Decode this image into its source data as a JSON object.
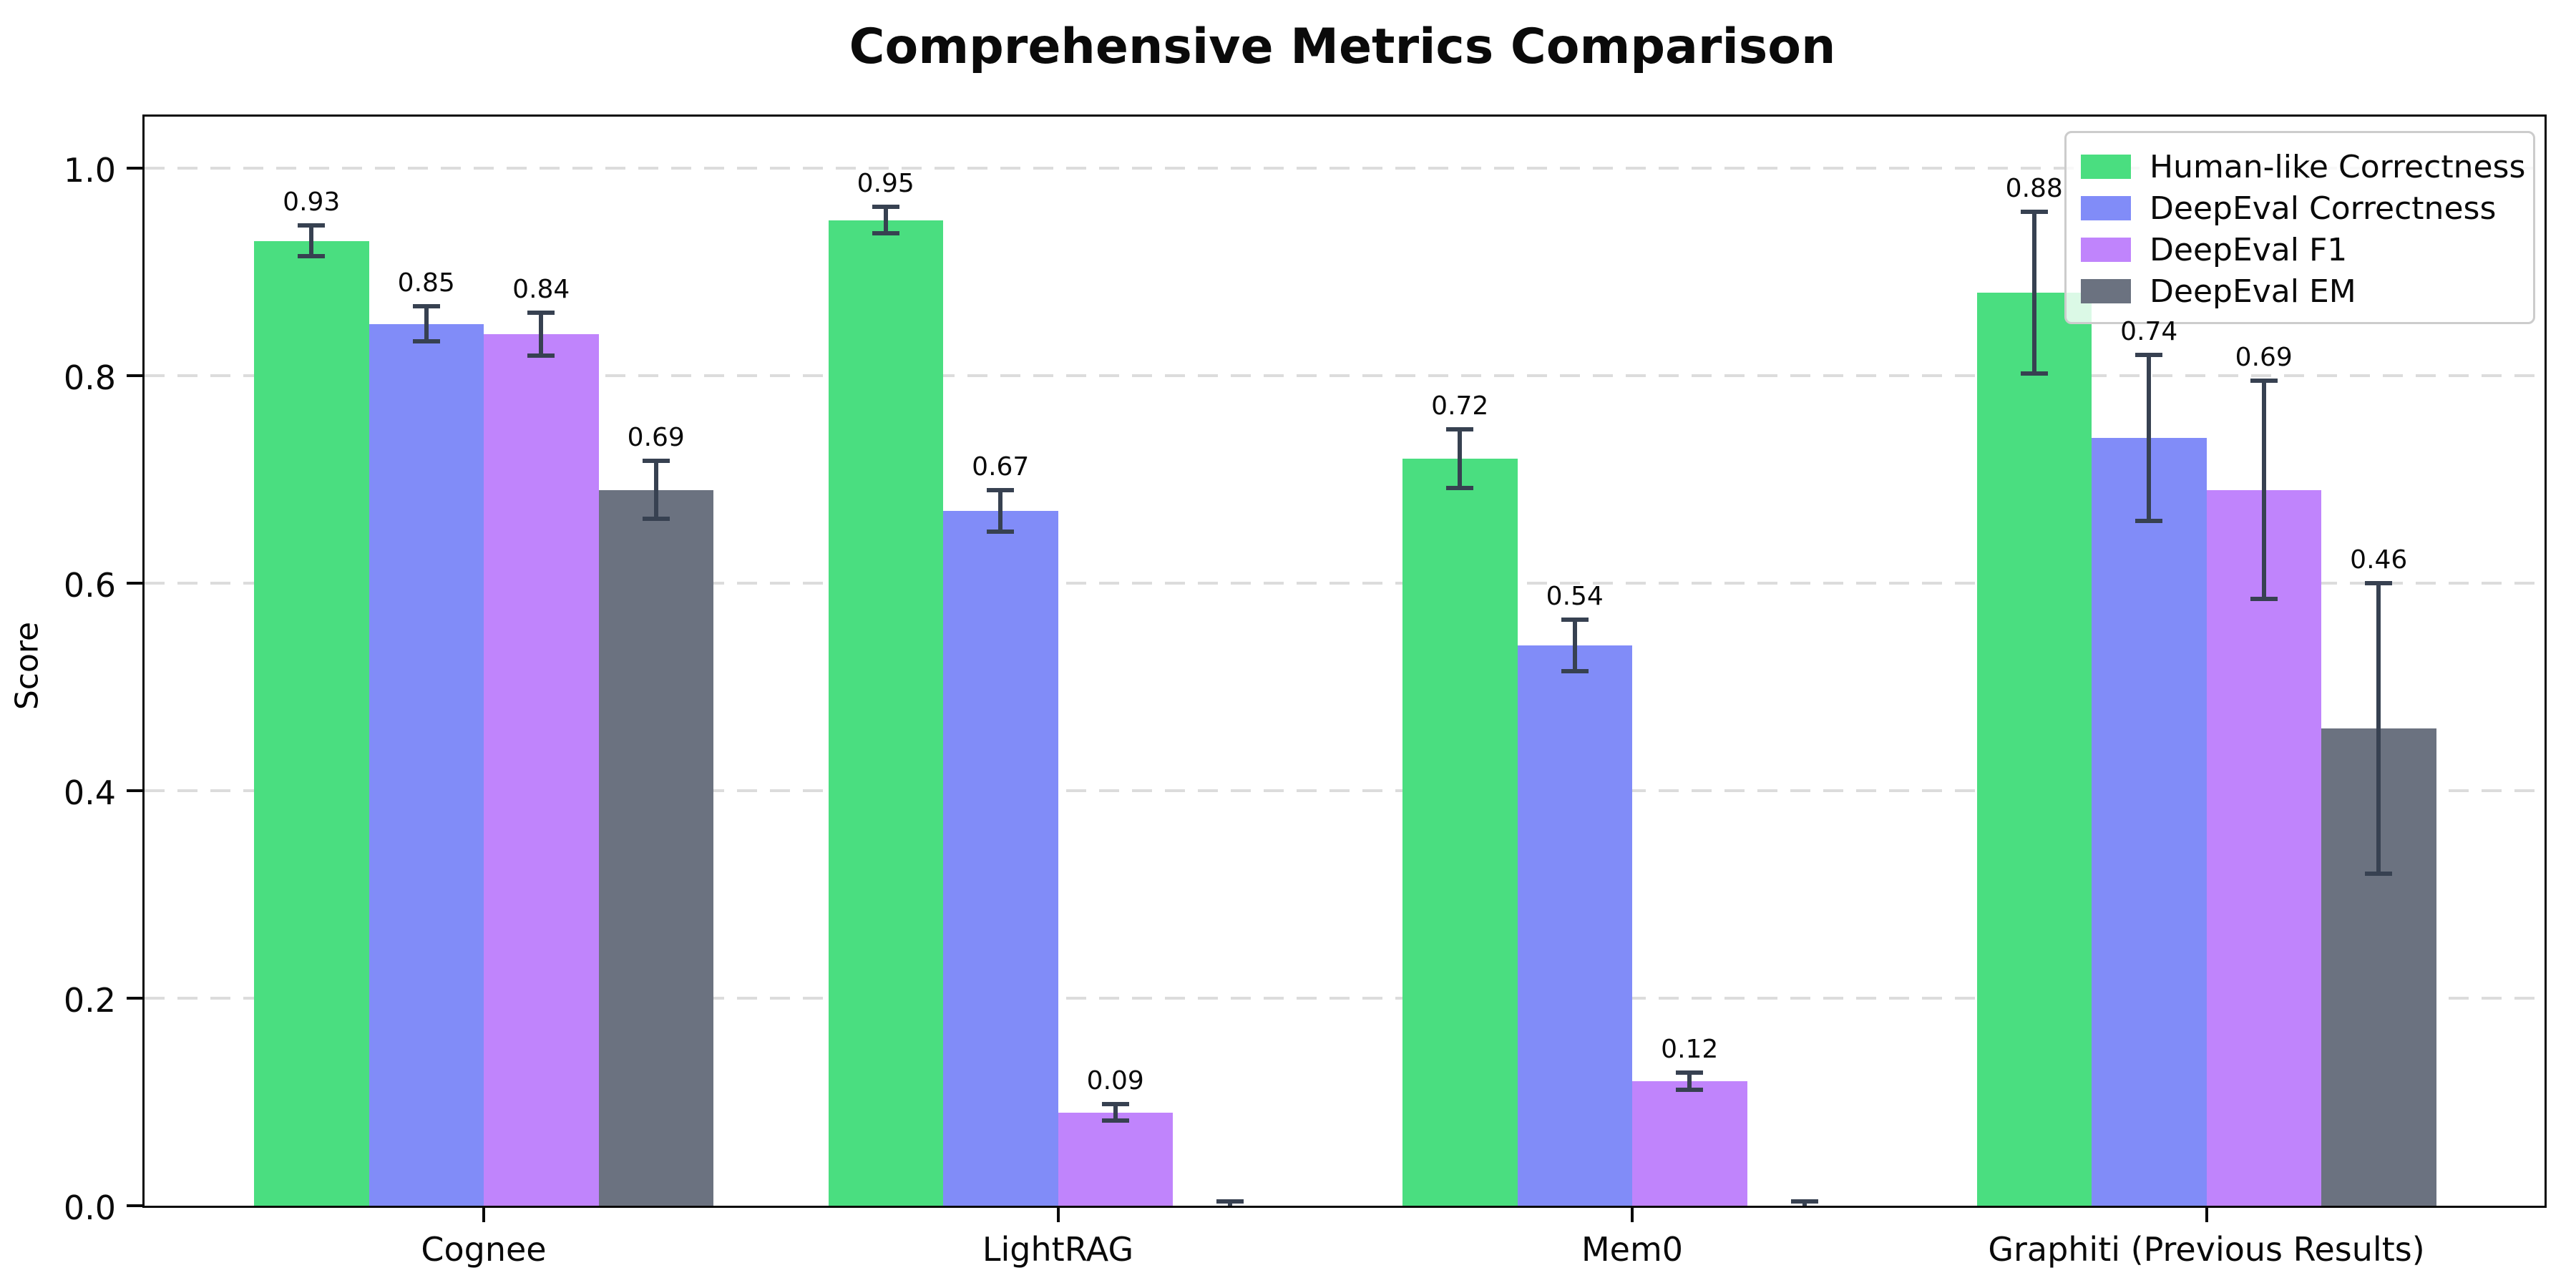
{
  "chart_data": {
    "type": "bar",
    "title": "Comprehensive Metrics Comparison",
    "ylabel": "Score",
    "xlabel": "",
    "categories": [
      "Cognee",
      "LightRAG",
      "Mem0",
      "Graphiti (Previous Results)"
    ],
    "series": [
      {
        "name": "Human-like Correctness",
        "color": "#4ade80",
        "values": [
          0.93,
          0.95,
          0.72,
          0.88
        ],
        "errors": [
          0.015,
          0.013,
          0.028,
          0.078
        ],
        "labels": [
          "0.93",
          "0.95",
          "0.72",
          "0.88"
        ]
      },
      {
        "name": "DeepEval Correctness",
        "color": "#818cf8",
        "values": [
          0.85,
          0.67,
          0.54,
          0.74
        ],
        "errors": [
          0.017,
          0.02,
          0.025,
          0.08
        ],
        "labels": [
          "0.85",
          "0.67",
          "0.54",
          "0.74"
        ]
      },
      {
        "name": "DeepEval F1",
        "color": "#c084fc",
        "values": [
          0.84,
          0.09,
          0.12,
          0.69
        ],
        "errors": [
          0.021,
          0.008,
          0.008,
          0.105
        ],
        "labels": [
          "0.84",
          "0.09",
          "0.12",
          "0.69"
        ]
      },
      {
        "name": "DeepEval EM",
        "color": "#6b7280",
        "values": [
          0.69,
          0.0,
          0.0,
          0.46
        ],
        "errors": [
          0.028,
          0.004,
          0.004,
          0.14
        ],
        "labels": [
          "0.69",
          null,
          null,
          "0.46"
        ]
      }
    ],
    "yticks": [
      "0.0",
      "0.2",
      "0.4",
      "0.6",
      "0.8",
      "1.0"
    ],
    "ylim": [
      0,
      1.05
    ],
    "grid": "horizontal dashed",
    "legend_position": "upper right",
    "error_bar_color": "#374151",
    "gridline_color": "#dcdcdc",
    "spine_color": "#0a0a0a"
  }
}
